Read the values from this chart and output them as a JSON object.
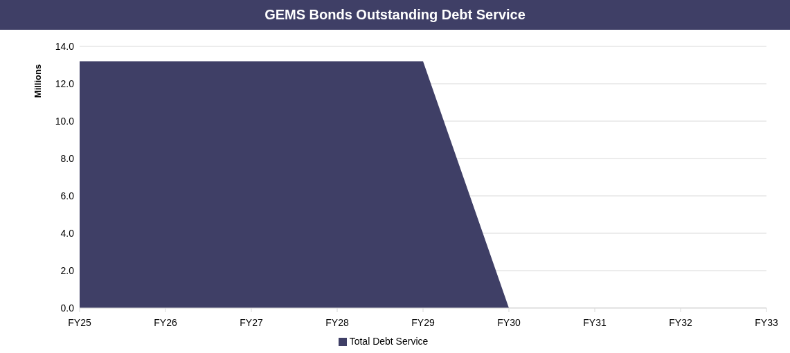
{
  "chart_data": {
    "type": "area",
    "title": "GEMS Bonds Outstanding Debt Service",
    "ylabel": "Millions",
    "categories": [
      "FY25",
      "FY26",
      "FY27",
      "FY28",
      "FY29",
      "FY30",
      "FY31",
      "FY32",
      "FY33"
    ],
    "series": [
      {
        "name": "Total Debt Service",
        "color": "#3f3f66",
        "values": [
          13.2,
          13.2,
          13.2,
          13.2,
          13.2,
          0,
          0,
          0,
          0
        ]
      }
    ],
    "ylim": [
      0,
      14
    ],
    "yticks": [
      {
        "value": 0,
        "label": "0.0"
      },
      {
        "value": 2,
        "label": "2.0"
      },
      {
        "value": 4,
        "label": "4.0"
      },
      {
        "value": 6,
        "label": "6.0"
      },
      {
        "value": 8,
        "label": "8.0"
      },
      {
        "value": 10,
        "label": "10.0"
      },
      {
        "value": 12,
        "label": "12.0"
      },
      {
        "value": 14,
        "label": "14.0"
      }
    ],
    "grid": "y",
    "legend": "bottom"
  }
}
